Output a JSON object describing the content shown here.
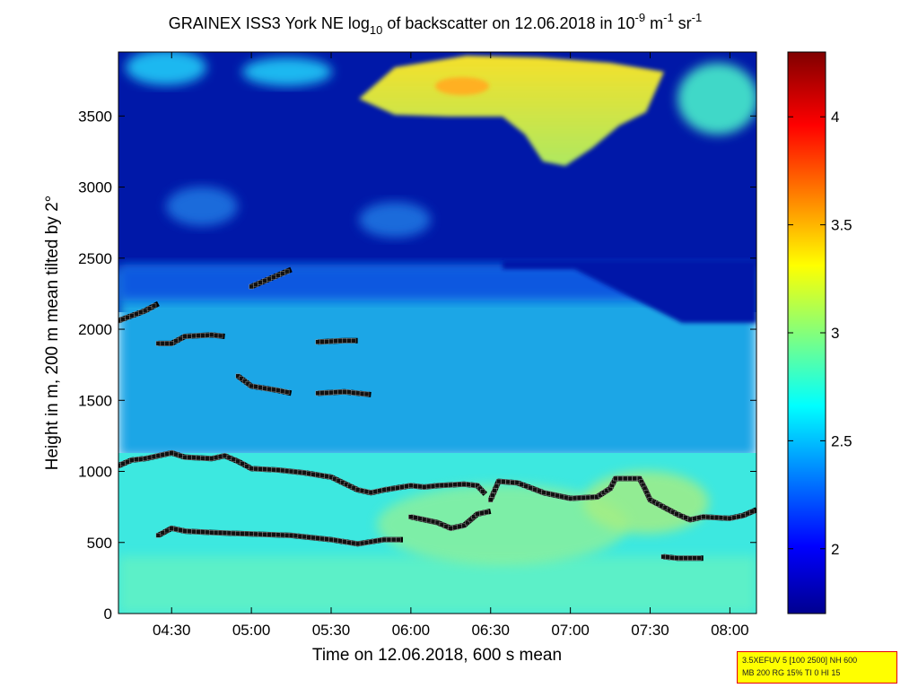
{
  "title": {
    "prefix": "GRAINEX ISS3 York NE log",
    "sub": "10",
    "middle": " of backscatter on 12.06.2018 in 10",
    "sup_exp": "-9",
    "unit_m": " m",
    "sup_m": "-1",
    "unit_sr": " sr",
    "sup_sr": "-1"
  },
  "info_box": {
    "line1": "3.5XEFUV 5 [100 2500] NH 600",
    "line2": "MB 200 RG 15% TI 0 HI 15"
  },
  "chart_data": {
    "type": "heatmap",
    "xlabel": "Time on 12.06.2018, 600 s mean",
    "ylabel": "Height in m, 200 m mean tilted by 2°",
    "x_range_minutes": [
      250,
      490
    ],
    "x_ticks": [
      {
        "label": "04:30",
        "minutes": 270
      },
      {
        "label": "05:00",
        "minutes": 300
      },
      {
        "label": "05:30",
        "minutes": 330
      },
      {
        "label": "06:00",
        "minutes": 360
      },
      {
        "label": "06:30",
        "minutes": 390
      },
      {
        "label": "07:00",
        "minutes": 420
      },
      {
        "label": "07:30",
        "minutes": 450
      },
      {
        "label": "08:00",
        "minutes": 480
      }
    ],
    "y_range": [
      0,
      3950
    ],
    "y_ticks": [
      0,
      500,
      1000,
      1500,
      2000,
      2500,
      3000,
      3500
    ],
    "colorbar": {
      "range": [
        1.7,
        4.3
      ],
      "ticks": [
        2,
        2.5,
        3,
        3.5,
        4
      ],
      "tick_labels": [
        "2",
        "2.5",
        "3",
        "3.5",
        "4"
      ],
      "colormap": "jet"
    },
    "background_structure": [
      {
        "region": "surface layer",
        "height_range": [
          0,
          1050
        ],
        "value": 2.9
      },
      {
        "region": "residual layer",
        "height_range": [
          1050,
          2300
        ],
        "value": 2.5
      },
      {
        "region": "clear air",
        "height_range": [
          2300,
          3950
        ],
        "value": 1.85
      },
      {
        "region": "elevated cloud",
        "time_range": [
          "05:35",
          "07:25"
        ],
        "height_range": [
          3200,
          3900
        ],
        "value": 3.4
      }
    ],
    "layer_series": [
      {
        "points": [
          [
            "04:10",
            1040
          ],
          [
            "04:15",
            1080
          ],
          [
            "04:20",
            1090
          ],
          [
            "04:30",
            1130
          ],
          [
            "04:35",
            1100
          ],
          [
            "04:45",
            1090
          ],
          [
            "04:50",
            1110
          ],
          [
            "04:55",
            1070
          ],
          [
            "05:00",
            1020
          ],
          [
            "05:10",
            1010
          ],
          [
            "05:20",
            990
          ],
          [
            "05:30",
            960
          ],
          [
            "05:40",
            870
          ],
          [
            "05:45",
            850
          ],
          [
            "05:50",
            870
          ],
          [
            "06:00",
            900
          ],
          [
            "06:05",
            890
          ],
          [
            "06:10",
            900
          ],
          [
            "06:20",
            910
          ],
          [
            "06:25",
            900
          ],
          [
            "06:28",
            840
          ]
        ]
      },
      {
        "points": [
          [
            "06:30",
            800
          ],
          [
            "06:33",
            930
          ],
          [
            "06:40",
            920
          ],
          [
            "06:50",
            850
          ],
          [
            "07:00",
            810
          ],
          [
            "07:10",
            820
          ],
          [
            "07:15",
            880
          ],
          [
            "07:17",
            950
          ],
          [
            "07:26",
            950
          ],
          [
            "07:28",
            880
          ],
          [
            "07:30",
            800
          ],
          [
            "07:40",
            700
          ],
          [
            "07:45",
            660
          ],
          [
            "07:50",
            680
          ],
          [
            "08:00",
            670
          ],
          [
            "08:05",
            690
          ],
          [
            "08:10",
            730
          ]
        ]
      },
      {
        "points": [
          [
            "06:00",
            680
          ],
          [
            "06:10",
            640
          ],
          [
            "06:15",
            600
          ],
          [
            "06:20",
            620
          ],
          [
            "06:25",
            700
          ],
          [
            "06:30",
            720
          ]
        ]
      },
      {
        "points": [
          [
            "04:25",
            550
          ],
          [
            "04:30",
            600
          ],
          [
            "04:35",
            580
          ],
          [
            "04:45",
            570
          ],
          [
            "05:00",
            560
          ],
          [
            "05:15",
            550
          ],
          [
            "05:30",
            520
          ],
          [
            "05:40",
            490
          ],
          [
            "05:50",
            520
          ],
          [
            "05:57",
            520
          ]
        ]
      },
      {
        "points": [
          [
            "07:35",
            400
          ],
          [
            "07:40",
            390
          ],
          [
            "07:50",
            390
          ]
        ]
      },
      {
        "points": [
          [
            "04:10",
            2060
          ],
          [
            "04:20",
            2130
          ],
          [
            "04:25",
            2180
          ]
        ]
      },
      {
        "points": [
          [
            "04:25",
            1900
          ],
          [
            "04:30",
            1900
          ],
          [
            "04:35",
            1950
          ],
          [
            "04:45",
            1960
          ],
          [
            "04:50",
            1950
          ]
        ]
      },
      {
        "points": [
          [
            "04:55",
            1670
          ],
          [
            "05:00",
            1600
          ],
          [
            "05:10",
            1570
          ],
          [
            "05:15",
            1550
          ]
        ]
      },
      {
        "points": [
          [
            "05:25",
            1550
          ],
          [
            "05:35",
            1560
          ],
          [
            "05:45",
            1540
          ]
        ]
      },
      {
        "points": [
          [
            "05:25",
            1910
          ],
          [
            "05:35",
            1920
          ],
          [
            "05:40",
            1920
          ]
        ]
      },
      {
        "points": [
          [
            "05:00",
            2300
          ],
          [
            "05:10",
            2380
          ],
          [
            "05:15",
            2420
          ]
        ]
      }
    ]
  }
}
